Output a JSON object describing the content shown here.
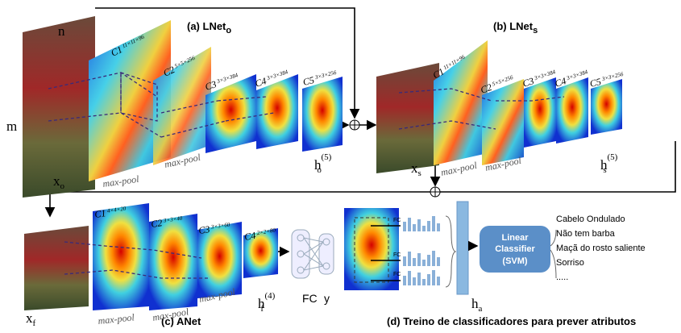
{
  "labels": {
    "n": "n",
    "m": "m"
  },
  "lnet_o": {
    "title": "(a) LNet",
    "title_sub": "o",
    "input": "x",
    "input_sub": "o",
    "output": "h",
    "output_sub": "o",
    "output_sup": "(5)",
    "pool": "max-pool",
    "layers": [
      {
        "name": "C1",
        "dims": "11×11×96"
      },
      {
        "name": "C2",
        "dims": "5×5×256"
      },
      {
        "name": "C3",
        "dims": "3×3×384"
      },
      {
        "name": "C4",
        "dims": "3×3×384"
      },
      {
        "name": "C5",
        "dims": "3×3×256"
      }
    ]
  },
  "lnet_s": {
    "title": "(b) LNet",
    "title_sub": "s",
    "input": "x",
    "input_sub": "s",
    "output": "h",
    "output_sub": "s",
    "output_sup": "(5)",
    "pool": "max-pool",
    "layers": [
      {
        "name": "C1",
        "dims": "11×11×96"
      },
      {
        "name": "C2",
        "dims": "5×5×256"
      },
      {
        "name": "C3",
        "dims": "3×3×384"
      },
      {
        "name": "C4",
        "dims": "3×3×384"
      },
      {
        "name": "C5",
        "dims": "3×3×256"
      }
    ]
  },
  "anet": {
    "title": "(c) ANet",
    "input": "x",
    "input_sub": "f",
    "output": "h",
    "output_sub": "f",
    "output_sup": "(4)",
    "pool": "max-pool",
    "fc": "FC",
    "y": "y",
    "layers": [
      {
        "name": "C1",
        "dims": "4×4×20"
      },
      {
        "name": "C2",
        "dims": "3×3×40"
      },
      {
        "name": "C3",
        "dims": "3×3×60"
      },
      {
        "name": "C4",
        "dims": "2×2×80"
      }
    ]
  },
  "classifier": {
    "caption": "(d) Treino de classificadores para prever atributos",
    "fc": "FC",
    "vector": "h",
    "vector_sub": "a",
    "box": [
      "Linear",
      "Classifier",
      "(SVM)"
    ],
    "attributes": [
      "Cabelo Ondulado",
      "Não tem barba",
      "Maçã do rosto saliente",
      "Sorriso",
      "....."
    ]
  }
}
